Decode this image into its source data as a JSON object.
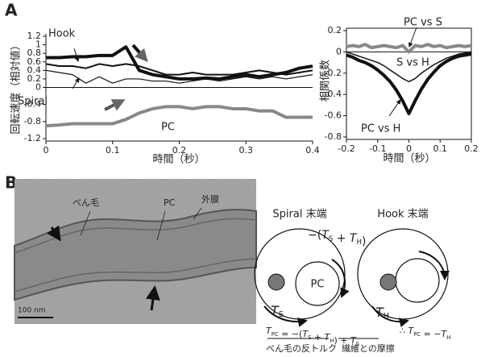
{
  "panel_labels": [
    "A",
    "B"
  ],
  "chart_data": [
    {
      "type": "line",
      "x_label": "時間（秒）",
      "y_label": "回転速度（相対値）",
      "x": [
        0,
        0.02,
        0.04,
        0.06,
        0.08,
        0.1,
        0.12,
        0.14,
        0.16,
        0.18,
        0.2,
        0.22,
        0.24,
        0.26,
        0.28,
        0.3,
        0.32,
        0.34,
        0.36,
        0.38,
        0.4
      ],
      "series": [
        {
          "name": "Hook",
          "color": "#111111",
          "linewidth": 4,
          "values": [
            0.7,
            0.7,
            0.72,
            0.72,
            0.75,
            0.75,
            0.95,
            0.4,
            0.3,
            0.25,
            0.2,
            0.2,
            0.22,
            0.2,
            0.25,
            0.3,
            0.25,
            0.3,
            0.35,
            0.45,
            0.5
          ]
        },
        {
          "color": "#111111",
          "linewidth": 2,
          "values": [
            0.55,
            0.5,
            0.5,
            0.45,
            0.55,
            0.5,
            0.55,
            0.5,
            0.4,
            0.3,
            0.3,
            0.35,
            0.3,
            0.3,
            0.3,
            0.35,
            0.4,
            0.35,
            0.3,
            0.35,
            0.4
          ]
        },
        {
          "name": "Spiral",
          "color": "#111111",
          "linewidth": 1.2,
          "values": [
            0.4,
            0.35,
            0.3,
            0.1,
            0.25,
            0.1,
            0.2,
            0.2,
            0.15,
            0.15,
            0.1,
            0.15,
            0.2,
            0.15,
            0.2,
            0.25,
            0.2,
            0.25,
            0.2,
            0.25,
            0.3
          ]
        },
        {
          "name": "PC",
          "color": "#888888",
          "linewidth": 4,
          "values": [
            -0.9,
            -0.88,
            -0.85,
            -0.85,
            -0.85,
            -0.85,
            -0.75,
            -0.6,
            -0.5,
            -0.45,
            -0.45,
            -0.5,
            -0.45,
            -0.45,
            -0.5,
            -0.5,
            -0.55,
            -0.55,
            -0.7,
            -0.7,
            -0.7
          ]
        }
      ],
      "xlim": [
        0,
        0.4
      ],
      "xticks": [
        0,
        0.1,
        0.2,
        0.3,
        0.4
      ],
      "ylim": [
        -1.2,
        1.2
      ],
      "yticks": [
        1.2,
        1,
        0.8,
        0.6,
        0.4,
        0.2,
        0,
        -0.4,
        -0.8,
        -1.2
      ]
    },
    {
      "type": "line",
      "x_label": "時間（秒）",
      "y_label": "相関係数",
      "x": [
        -0.2,
        -0.18,
        -0.16,
        -0.14,
        -0.12,
        -0.1,
        -0.08,
        -0.06,
        -0.04,
        -0.02,
        0,
        0.02,
        0.04,
        0.06,
        0.08,
        0.1,
        0.12,
        0.14,
        0.16,
        0.18,
        0.2
      ],
      "series": [
        {
          "name": "PC vs S",
          "color": "#888888",
          "linewidth": 4,
          "values": [
            0.05,
            0.06,
            0.05,
            0.07,
            0.04,
            0.05,
            0.06,
            0.05,
            0.04,
            0.06,
            0.0,
            0.06,
            0.05,
            0.07,
            0.05,
            0.06,
            0.04,
            0.05,
            0.06,
            0.05,
            0.06
          ]
        },
        {
          "name": "S vs H",
          "color": "#111111",
          "linewidth": 1.5,
          "values": [
            0,
            -0.02,
            -0.04,
            -0.06,
            -0.08,
            -0.1,
            -0.13,
            -0.17,
            -0.21,
            -0.25,
            -0.28,
            -0.25,
            -0.2,
            -0.16,
            -0.12,
            -0.09,
            -0.06,
            -0.04,
            -0.02,
            -0.01,
            0
          ]
        },
        {
          "name": "PC vs H",
          "color": "#111111",
          "linewidth": 4,
          "values": [
            -0.03,
            -0.05,
            -0.08,
            -0.1,
            -0.13,
            -0.17,
            -0.22,
            -0.28,
            -0.36,
            -0.46,
            -0.58,
            -0.46,
            -0.35,
            -0.26,
            -0.19,
            -0.13,
            -0.09,
            -0.06,
            -0.04,
            -0.03,
            -0.02
          ]
        }
      ],
      "xlim": [
        -0.2,
        0.2
      ],
      "xticks": [
        -0.2,
        -0.1,
        0,
        0.1,
        0.2
      ],
      "ylim": [
        -0.8,
        0.2
      ],
      "yticks": [
        0.2,
        0,
        -0.2,
        -0.4,
        -0.6,
        -0.8
      ]
    }
  ],
  "image": {
    "labels": [
      "べん毛",
      "PC",
      "外膜"
    ],
    "scale_bar": "100 nm"
  },
  "diagram": {
    "spiral_title": "Spiral 末端",
    "hook_title": "Hook 末端",
    "pc_label": "PC",
    "torque_total": [
      {
        "text": "−("
      },
      {
        "var": "T",
        "sub": "S"
      },
      {
        "text": " + "
      },
      {
        "var": "T",
        "sub": "H"
      },
      {
        "text": ")"
      }
    ],
    "torque_s": [
      {
        "var": "T",
        "sub": "S"
      }
    ],
    "torque_h": [
      {
        "var": "T",
        "sub": "H"
      }
    ],
    "formula_left": [
      {
        "var": "T",
        "sub": "PC"
      },
      {
        "text": " = −("
      },
      {
        "var": "T",
        "sub": "S"
      },
      {
        "text": " + "
      },
      {
        "var": "T",
        "sub": "H"
      },
      {
        "text": ") + "
      },
      {
        "var": "T",
        "sub": "S"
      }
    ],
    "formula_right": [
      {
        "text": "∴ "
      },
      {
        "var": "T",
        "sub": "PC"
      },
      {
        "text": " = −"
      },
      {
        "var": "T",
        "sub": "H"
      }
    ],
    "note_left": "べん毛の反トルク",
    "note_right": "繊維との摩擦"
  }
}
